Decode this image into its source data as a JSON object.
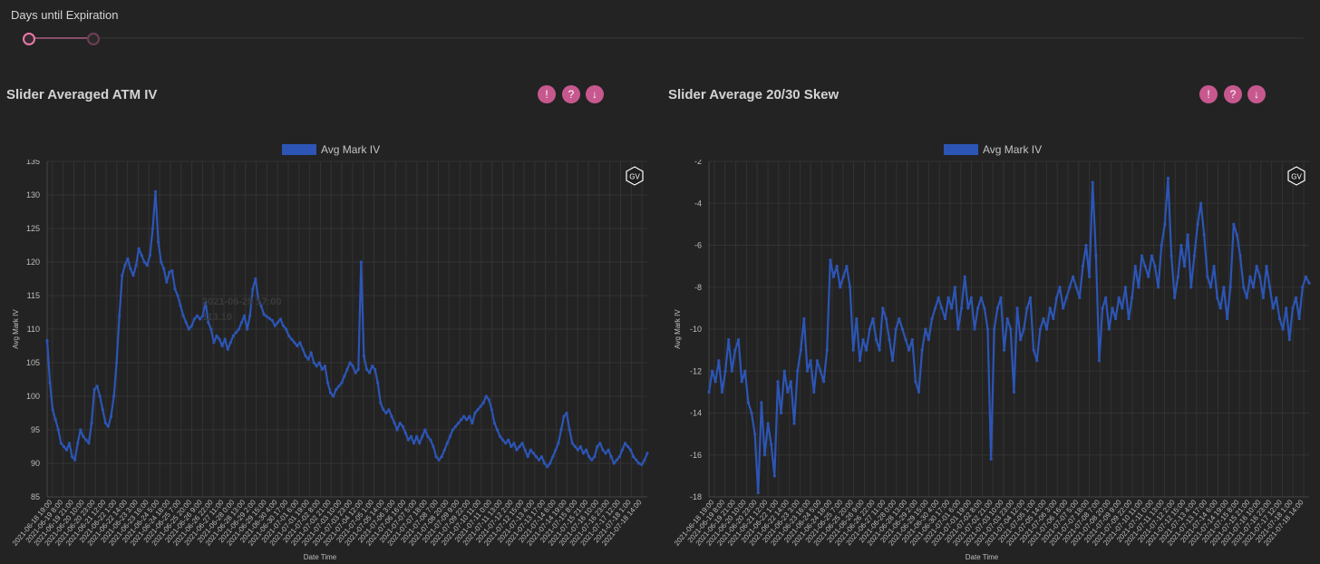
{
  "slider": {
    "label": "Days until Expiration",
    "value_min": 0,
    "value_max": 0.05
  },
  "buttons": {
    "info_icon": "!",
    "help_icon": "?",
    "download_icon": "↓"
  },
  "watermark": "GV",
  "colors": {
    "line": "#2c55b5",
    "accent": "#c7588e",
    "background": "#232323",
    "grid": "#333333"
  },
  "chart_data": [
    {
      "type": "line",
      "title": "Slider Averaged ATM IV",
      "xlabel": "Date Time",
      "ylabel": "Avg Mark IV",
      "ylim": [
        85,
        135
      ],
      "yticks": [
        85,
        90,
        95,
        100,
        105,
        110,
        115,
        120,
        125,
        130,
        135
      ],
      "legend": "top-center",
      "grid": true,
      "x_tick_labels": [
        "2021-06-18 19:00",
        "2021-06-19 8:00",
        "2021-06-19 21:00",
        "2021-06-20 10:00",
        "2021-06-20 23:00",
        "2021-06-21 12:00",
        "2021-06-22 1:00",
        "2021-06-22 14:00",
        "2021-06-23 3:00",
        "2021-06-23 16:00",
        "2021-06-24 5:00",
        "2021-06-24 18:00",
        "2021-06-25 7:00",
        "2021-06-25 20:00",
        "2021-06-26 9:00",
        "2021-06-26 22:00",
        "2021-06-27 11:00",
        "2021-06-28 0:00",
        "2021-06-28 13:00",
        "2021-06-29 2:00",
        "2021-06-29 15:00",
        "2021-06-30 4:00",
        "2021-06-30 17:00",
        "2021-07-01 6:00",
        "2021-07-01 19:00",
        "2021-07-02 8:00",
        "2021-07-02 21:00",
        "2021-07-03 10:00",
        "2021-07-03 23:00",
        "2021-07-04 12:00",
        "2021-07-05 1:00",
        "2021-07-05 14:00",
        "2021-07-06 3:00",
        "2021-07-06 16:00",
        "2021-07-07 5:00",
        "2021-07-07 18:00",
        "2021-07-08 7:00",
        "2021-07-08 20:00",
        "2021-07-09 9:00",
        "2021-07-09 22:00",
        "2021-07-10 11:00",
        "2021-07-11 0:00",
        "2021-07-11 13:00",
        "2021-07-12 2:00",
        "2021-07-12 15:00",
        "2021-07-13 4:00",
        "2021-07-13 17:00",
        "2021-07-14 6:00",
        "2021-07-14 19:00",
        "2021-07-15 8:00",
        "2021-07-15 21:00",
        "2021-07-16 10:00",
        "2021-07-16 23:00",
        "2021-07-17 12:00",
        "2021-07-18 1:00",
        "2021-07-18 14:00"
      ],
      "tooltip": {
        "label": "2021-06-25 17:00",
        "value": "113.10"
      },
      "series": [
        {
          "name": "Avg Mark IV",
          "x_range": [
            "2021-06-18 19:00",
            "2021-07-18 20:00"
          ],
          "values": [
            108.3,
            102,
            98,
            96.5,
            95,
            93,
            92.5,
            92,
            93,
            91,
            90.5,
            93,
            95,
            94,
            93.5,
            93,
            96,
            101,
            101.5,
            100,
            98,
            96,
            95.5,
            97,
            100,
            105,
            112,
            118,
            119.5,
            120.5,
            119,
            118,
            119.5,
            122,
            121,
            120,
            119.5,
            121,
            125,
            130.5,
            123,
            120,
            119,
            117,
            118.5,
            118.7,
            116,
            115,
            113.5,
            112,
            111,
            110,
            110.5,
            111.5,
            112,
            111.5,
            112,
            114,
            111,
            110,
            108,
            109,
            108.5,
            107.5,
            108.5,
            107,
            108,
            109,
            109.5,
            110,
            111,
            112,
            110,
            112,
            116,
            117.5,
            114.5,
            113.5,
            112.2,
            111.9,
            111.6,
            111.3,
            110.5,
            111,
            111.5,
            110.5,
            110,
            109,
            108.5,
            108,
            107.5,
            108,
            107,
            106,
            105.5,
            106.5,
            105,
            104.5,
            105,
            104,
            104.5,
            102,
            100.5,
            100,
            101,
            101.5,
            102,
            103,
            104,
            105,
            104.5,
            103.5,
            104,
            120,
            106,
            104,
            103.5,
            104.5,
            104,
            102,
            99,
            98,
            97.5,
            98,
            97,
            96,
            95,
            96,
            95.5,
            94.5,
            93.5,
            94,
            93,
            94,
            93,
            94,
            95,
            94,
            93.5,
            92.5,
            91,
            90.5,
            91,
            92,
            93,
            94,
            95,
            95.5,
            96,
            96.5,
            97,
            96.5,
            97,
            96,
            97.5,
            98,
            98.5,
            99,
            100,
            99.5,
            98,
            96,
            95,
            94,
            93.5,
            93,
            93.5,
            92.5,
            93,
            92,
            92.5,
            93,
            92,
            91,
            92,
            91.5,
            91,
            90.5,
            91,
            90,
            89.5,
            90,
            91,
            92,
            93,
            95,
            97,
            97.5,
            95,
            93,
            92.5,
            92,
            92.5,
            91.5,
            92,
            91,
            90.5,
            91,
            92.5,
            93,
            92,
            91.5,
            92,
            91,
            90,
            90.5,
            91,
            92,
            93,
            92.5,
            92,
            91,
            90.5,
            90,
            89.8,
            90.5,
            91.5
          ]
        }
      ]
    },
    {
      "type": "line",
      "title": "Slider Average 20/30 Skew",
      "xlabel": "Date Time",
      "ylabel": "Avg Mark IV",
      "ylim": [
        -18,
        -2
      ],
      "yticks": [
        -18,
        -16,
        -14,
        -12,
        -10,
        -8,
        -6,
        -4,
        -2
      ],
      "legend": "top-center",
      "grid": true,
      "x_tick_labels": [
        "2021-06-18 19:00",
        "2021-06-19 8:00",
        "2021-06-19 21:00",
        "2021-06-20 10:00",
        "2021-06-20 23:00",
        "2021-06-21 12:00",
        "2021-06-22 1:00",
        "2021-06-22 14:00",
        "2021-06-23 3:00",
        "2021-06-23 16:00",
        "2021-06-24 5:00",
        "2021-06-24 18:00",
        "2021-06-25 7:00",
        "2021-06-25 20:00",
        "2021-06-26 9:00",
        "2021-06-26 22:00",
        "2021-06-27 11:00",
        "2021-06-28 0:00",
        "2021-06-28 13:00",
        "2021-06-29 2:00",
        "2021-06-29 15:00",
        "2021-06-30 4:00",
        "2021-06-30 17:00",
        "2021-07-01 6:00",
        "2021-07-01 19:00",
        "2021-07-02 8:00",
        "2021-07-02 21:00",
        "2021-07-03 10:00",
        "2021-07-03 23:00",
        "2021-07-04 12:00",
        "2021-07-05 1:00",
        "2021-07-05 14:00",
        "2021-07-06 3:00",
        "2021-07-06 16:00",
        "2021-07-07 5:00",
        "2021-07-07 18:00",
        "2021-07-08 7:00",
        "2021-07-08 20:00",
        "2021-07-09 9:00",
        "2021-07-09 22:00",
        "2021-07-10 11:00",
        "2021-07-11 0:00",
        "2021-07-11 13:00",
        "2021-07-12 2:00",
        "2021-07-12 15:00",
        "2021-07-13 4:00",
        "2021-07-13 17:00",
        "2021-07-14 6:00",
        "2021-07-14 19:00",
        "2021-07-15 8:00",
        "2021-07-15 21:00",
        "2021-07-16 10:00",
        "2021-07-16 23:00",
        "2021-07-17 12:00",
        "2021-07-18 1:00",
        "2021-07-18 14:00"
      ],
      "series": [
        {
          "name": "Avg Mark IV",
          "x_range": [
            "2021-06-18 19:00",
            "2021-07-18 20:00"
          ],
          "values": [
            -13,
            -12,
            -12.5,
            -11.5,
            -13,
            -12,
            -10.5,
            -12,
            -11,
            -10.5,
            -12.5,
            -12,
            -13.5,
            -14,
            -15,
            -17.8,
            -13.5,
            -16,
            -14.5,
            -15.5,
            -17,
            -12.5,
            -14,
            -12,
            -13,
            -12.5,
            -14.5,
            -12,
            -11,
            -9.5,
            -12,
            -11.5,
            -13,
            -11.5,
            -12,
            -12.5,
            -11,
            -6.7,
            -7.5,
            -7,
            -8,
            -7.5,
            -7,
            -8,
            -11,
            -9.5,
            -11.5,
            -10.5,
            -11,
            -10,
            -9.5,
            -10.5,
            -11,
            -9,
            -9.5,
            -10.5,
            -11.5,
            -10,
            -9.5,
            -10,
            -10.5,
            -11,
            -10.5,
            -12.5,
            -13,
            -11,
            -10,
            -10.5,
            -9.5,
            -9,
            -8.5,
            -9,
            -9.5,
            -8.5,
            -9,
            -8,
            -10,
            -9,
            -7.5,
            -9,
            -8.5,
            -10,
            -9,
            -8.5,
            -9,
            -10,
            -16.2,
            -10,
            -9,
            -8.5,
            -11,
            -9.5,
            -10,
            -13,
            -9,
            -10.5,
            -10,
            -9,
            -8.5,
            -11,
            -11.5,
            -10,
            -9.5,
            -10,
            -9,
            -9.5,
            -8.5,
            -8,
            -9,
            -8.5,
            -8,
            -7.5,
            -8,
            -8.5,
            -7,
            -6,
            -7.5,
            -3,
            -6.5,
            -11.5,
            -9,
            -8.5,
            -10,
            -9,
            -9.5,
            -8.5,
            -9,
            -8,
            -9.5,
            -8.5,
            -7,
            -8,
            -6.5,
            -7,
            -7.5,
            -6.5,
            -7,
            -8,
            -6,
            -5,
            -2.8,
            -6.5,
            -8.5,
            -7.5,
            -6,
            -7,
            -5.5,
            -8,
            -6.5,
            -5,
            -4,
            -5.5,
            -7.5,
            -8,
            -7,
            -8.5,
            -9,
            -8,
            -9.5,
            -8,
            -5,
            -5.5,
            -6.5,
            -8,
            -8.5,
            -7.5,
            -8,
            -7,
            -7.5,
            -8.5,
            -7,
            -8,
            -9,
            -8.5,
            -9.5,
            -10,
            -9,
            -10.5,
            -9,
            -8.5,
            -9.5,
            -8,
            -7.5,
            -7.8
          ]
        }
      ]
    }
  ]
}
